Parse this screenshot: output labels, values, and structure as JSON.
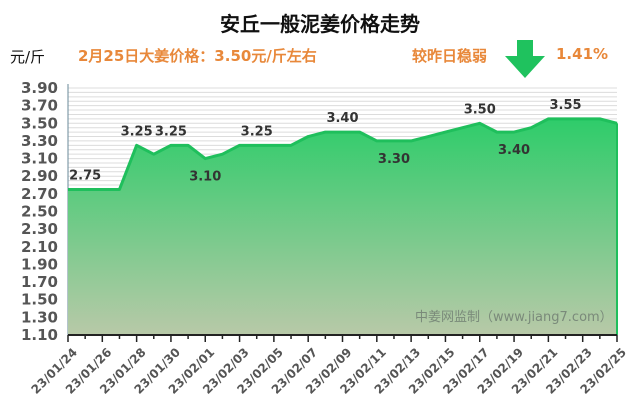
{
  "header": {
    "title": "安丘一般泥姜价格走势",
    "unit": "元/斤",
    "price_note": "2月25日大姜价格：3.50元/斤左右",
    "change_label": "较昨日稳弱",
    "change_direction": "down",
    "change_pct": "1.41%"
  },
  "watermark": "中姜网监制（www.jiang7.com）",
  "colors": {
    "accent_orange": "#e8883a",
    "line_green": "#1fbf5c",
    "fill_top": "#2ecc6a",
    "fill_bottom": "#b8c9a8",
    "arrow_green": "#1fc25e"
  },
  "chart_data": {
    "type": "area",
    "title": "安丘一般泥姜价格走势",
    "ylabel": "元/斤",
    "xlabel": "",
    "ylim": [
      1.1,
      3.9
    ],
    "yticks": [
      "1.10",
      "1.30",
      "1.50",
      "1.70",
      "1.90",
      "2.10",
      "2.30",
      "2.50",
      "2.70",
      "2.90",
      "3.10",
      "3.30",
      "3.50",
      "3.70",
      "3.90"
    ],
    "grid": true,
    "xtick_labels": [
      "23/01/24",
      "23/01/26",
      "23/01/28",
      "23/01/30",
      "23/02/01",
      "23/02/03",
      "23/02/05",
      "23/02/07",
      "23/02/09",
      "23/02/11",
      "23/02/13",
      "23/02/15",
      "23/02/17",
      "23/02/19",
      "23/02/21",
      "23/02/23",
      "23/02/25"
    ],
    "x": [
      "23/01/24",
      "23/01/25",
      "23/01/26",
      "23/01/27",
      "23/01/28",
      "23/01/29",
      "23/01/30",
      "23/01/31",
      "23/02/01",
      "23/02/02",
      "23/02/03",
      "23/02/04",
      "23/02/05",
      "23/02/06",
      "23/02/07",
      "23/02/08",
      "23/02/09",
      "23/02/10",
      "23/02/11",
      "23/02/12",
      "23/02/13",
      "23/02/14",
      "23/02/15",
      "23/02/16",
      "23/02/17",
      "23/02/18",
      "23/02/19",
      "23/02/20",
      "23/02/21",
      "23/02/22",
      "23/02/23",
      "23/02/24",
      "23/02/25"
    ],
    "series": [
      {
        "name": "安丘一般泥姜价格",
        "values": [
          2.75,
          2.75,
          2.75,
          2.75,
          3.25,
          3.15,
          3.25,
          3.25,
          3.1,
          3.15,
          3.25,
          3.25,
          3.25,
          3.25,
          3.35,
          3.4,
          3.4,
          3.4,
          3.3,
          3.3,
          3.3,
          3.35,
          3.4,
          3.45,
          3.5,
          3.4,
          3.4,
          3.45,
          3.55,
          3.55,
          3.55,
          3.55,
          3.5
        ]
      }
    ],
    "annotations": [
      {
        "x": "23/01/25",
        "text": "2.75"
      },
      {
        "x": "23/01/28",
        "text": "3.25"
      },
      {
        "x": "23/01/30",
        "text": "3.25"
      },
      {
        "x": "23/02/01",
        "text": "3.10"
      },
      {
        "x": "23/02/04",
        "text": "3.25"
      },
      {
        "x": "23/02/09",
        "text": "3.40"
      },
      {
        "x": "23/02/12",
        "text": "3.30"
      },
      {
        "x": "23/02/17",
        "text": "3.50"
      },
      {
        "x": "23/02/19",
        "text": "3.40"
      },
      {
        "x": "23/02/22",
        "text": "3.55"
      }
    ]
  }
}
